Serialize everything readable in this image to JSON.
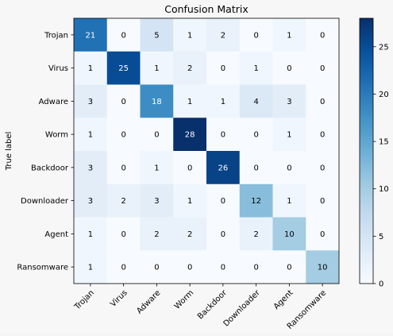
{
  "chart_data": {
    "type": "heatmap",
    "title": "Confusion Matrix",
    "ylabel": "True label",
    "xlabel": "",
    "row_labels": [
      "Trojan",
      "Virus",
      "Adware",
      "Worm",
      "Backdoor",
      "Downloader",
      "Agent",
      "Ransomware"
    ],
    "col_labels": [
      "Trojan",
      "Virus",
      "Adware",
      "Worm",
      "Backdoor",
      "Downloader",
      "Agent",
      "Ransomware"
    ],
    "matrix": [
      [
        21,
        0,
        5,
        1,
        2,
        0,
        1,
        0
      ],
      [
        1,
        25,
        1,
        2,
        0,
        1,
        0,
        0
      ],
      [
        3,
        0,
        18,
        1,
        1,
        4,
        3,
        0
      ],
      [
        1,
        0,
        0,
        28,
        0,
        0,
        1,
        0
      ],
      [
        3,
        0,
        1,
        0,
        26,
        0,
        0,
        0
      ],
      [
        3,
        2,
        3,
        1,
        0,
        12,
        1,
        0
      ],
      [
        1,
        0,
        2,
        2,
        0,
        2,
        10,
        0
      ],
      [
        1,
        0,
        0,
        0,
        0,
        0,
        0,
        10
      ]
    ],
    "colormap": "Blues",
    "color_range": [
      0,
      28
    ],
    "colorbar_ticks": [
      0,
      5,
      10,
      15,
      20,
      25
    ],
    "grid": false
  }
}
